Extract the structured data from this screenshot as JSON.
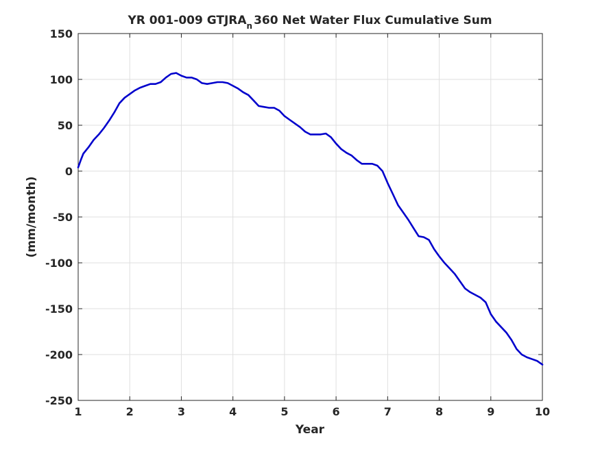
{
  "chart_data": {
    "type": "line",
    "title_main": "YR 001-009 GTJRA",
    "title_subscript": "n",
    "title_rest": "360 Net Water Flux Cumulative Sum",
    "xlabel": "Year",
    "ylabel": "(mm/month)",
    "xlim": [
      1,
      10
    ],
    "ylim": [
      -250,
      150
    ],
    "x_ticks": [
      "1",
      "2",
      "3",
      "4",
      "5",
      "6",
      "7",
      "8",
      "9",
      "10"
    ],
    "y_ticks": [
      "150",
      "100",
      "50",
      "0",
      "-50",
      "-100",
      "-150",
      "-200",
      "-250"
    ],
    "grid": true,
    "line_color": "#0000cc",
    "series": [
      {
        "x": [
          1.0,
          1.05,
          1.1,
          1.2,
          1.3,
          1.4,
          1.5,
          1.6,
          1.7,
          1.8,
          1.9,
          2.0,
          2.1,
          2.2,
          2.3,
          2.4,
          2.5,
          2.6,
          2.7,
          2.8,
          2.9,
          3.0,
          3.1,
          3.2,
          3.3,
          3.4,
          3.5,
          3.6,
          3.7,
          3.8,
          3.9,
          4.0,
          4.1,
          4.2,
          4.3,
          4.4,
          4.5,
          4.6,
          4.7,
          4.8,
          4.9,
          5.0,
          5.1,
          5.2,
          5.3,
          5.4,
          5.5,
          5.6,
          5.7,
          5.8,
          5.9,
          6.0,
          6.1,
          6.2,
          6.3,
          6.4,
          6.5,
          6.6,
          6.7,
          6.8,
          6.9,
          7.0,
          7.1,
          7.2,
          7.3,
          7.4,
          7.5,
          7.6,
          7.7,
          7.8,
          7.9,
          8.0,
          8.1,
          8.2,
          8.3,
          8.4,
          8.5,
          8.6,
          8.7,
          8.8,
          8.9,
          9.0,
          9.1,
          9.2,
          9.3,
          9.4,
          9.5,
          9.6,
          9.7,
          9.8,
          9.9,
          10.0
        ],
        "y": [
          4,
          12,
          19,
          26,
          34,
          40,
          47,
          55,
          64,
          74,
          80,
          84,
          88,
          91,
          93,
          95,
          95,
          97,
          102,
          106,
          107,
          104,
          102,
          102,
          100,
          96,
          95,
          96,
          97,
          97,
          96,
          93,
          90,
          86,
          83,
          77,
          71,
          70,
          69,
          69,
          66,
          60,
          56,
          52,
          48,
          43,
          40,
          40,
          40,
          41,
          37,
          30,
          24,
          20,
          17,
          12,
          8,
          8,
          8,
          6,
          0,
          -13,
          -25,
          -37,
          -45,
          -53,
          -62,
          -71,
          -72,
          -75,
          -85,
          -93,
          -100,
          -106,
          -112,
          -120,
          -128,
          -132,
          -135,
          -138,
          -143,
          -156,
          -164,
          -170,
          -176,
          -184,
          -194,
          -200,
          -203,
          -205,
          -207,
          -211
        ]
      }
    ]
  }
}
